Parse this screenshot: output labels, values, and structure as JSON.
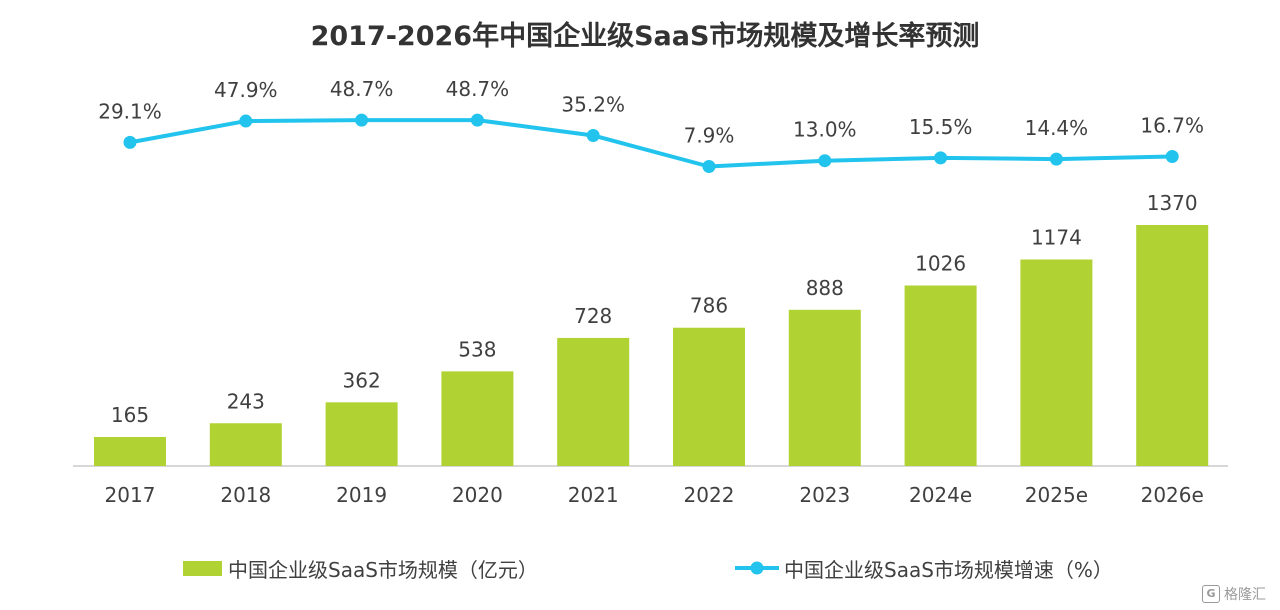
{
  "title": "2017-2026年中国企业级SaaS市场规模及增长率预测",
  "watermark": {
    "label": "格隆汇",
    "logo_text": "G"
  },
  "chart_data": {
    "type": "bar+line",
    "title": "2017-2026年中国企业级SaaS市场规模及增长率预测",
    "categories": [
      "2017",
      "2018",
      "2019",
      "2020",
      "2021",
      "2022",
      "2023",
      "2024e",
      "2025e",
      "2026e"
    ],
    "series": [
      {
        "name": "中国企业级SaaS市场规模（亿元）",
        "type": "bar",
        "color": "#b0d232",
        "values": [
          165,
          243,
          362,
          538,
          728,
          786,
          888,
          1026,
          1174,
          1370
        ],
        "labels": [
          "165",
          "243",
          "362",
          "538",
          "728",
          "786",
          "888",
          "1026",
          "1174",
          "1370"
        ]
      },
      {
        "name": "中国企业级SaaS市场规模增速（%）",
        "type": "line",
        "color": "#22c4ee",
        "values": [
          29.1,
          47.9,
          48.7,
          48.7,
          35.2,
          7.9,
          13.0,
          15.5,
          14.4,
          16.7
        ],
        "labels": [
          "29.1%",
          "47.9%",
          "48.7%",
          "48.7%",
          "35.2%",
          "7.9%",
          "13.0%",
          "15.5%",
          "14.4%",
          "16.7%"
        ]
      }
    ],
    "legend_position": "bottom",
    "grid": false
  }
}
